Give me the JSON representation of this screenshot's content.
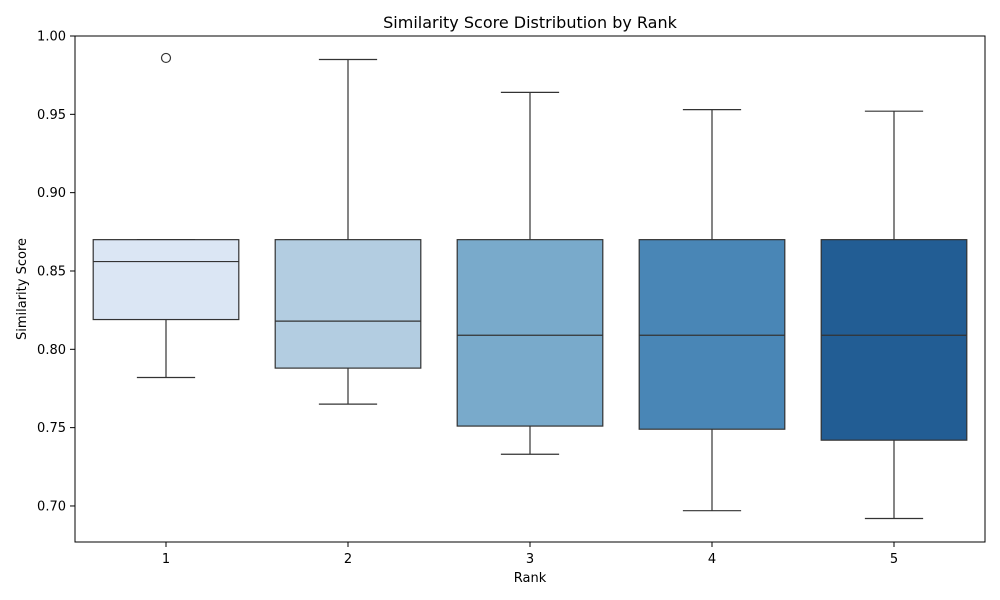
{
  "chart_data": {
    "type": "box",
    "title": "Similarity Score Distribution by Rank",
    "xlabel": "Rank",
    "ylabel": "Similarity Score",
    "categories": [
      "1",
      "2",
      "3",
      "4",
      "5"
    ],
    "ylim": [
      0.677,
      1.0
    ],
    "yticks": [
      "0.70",
      "0.75",
      "0.80",
      "0.85",
      "0.90",
      "0.95",
      "1.00"
    ],
    "grid": false,
    "colors": [
      "#dbe6f4",
      "#b3cde1",
      "#79aacb",
      "#4986b6",
      "#225d94"
    ],
    "boxes": [
      {
        "category": "1",
        "whisker_low": 0.782,
        "q1": 0.819,
        "median": 0.856,
        "q3": 0.87,
        "whisker_high": 0.87,
        "outliers": [
          0.986
        ]
      },
      {
        "category": "2",
        "whisker_low": 0.765,
        "q1": 0.788,
        "median": 0.818,
        "q3": 0.87,
        "whisker_high": 0.985,
        "outliers": []
      },
      {
        "category": "3",
        "whisker_low": 0.733,
        "q1": 0.751,
        "median": 0.809,
        "q3": 0.87,
        "whisker_high": 0.964,
        "outliers": []
      },
      {
        "category": "4",
        "whisker_low": 0.697,
        "q1": 0.749,
        "median": 0.809,
        "q3": 0.87,
        "whisker_high": 0.953,
        "outliers": []
      },
      {
        "category": "5",
        "whisker_low": 0.692,
        "q1": 0.742,
        "median": 0.809,
        "q3": 0.87,
        "whisker_high": 0.952,
        "outliers": []
      }
    ]
  }
}
